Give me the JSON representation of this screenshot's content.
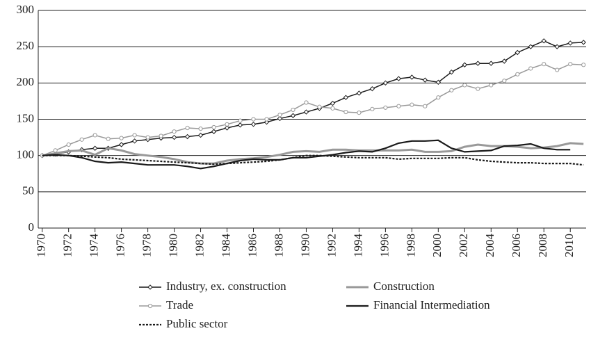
{
  "chart_data": {
    "type": "line",
    "x": [
      1970,
      1971,
      1972,
      1973,
      1974,
      1975,
      1976,
      1977,
      1978,
      1979,
      1980,
      1981,
      1982,
      1983,
      1984,
      1985,
      1986,
      1987,
      1988,
      1989,
      1990,
      1991,
      1992,
      1993,
      1994,
      1995,
      1996,
      1997,
      1998,
      1999,
      2000,
      2001,
      2002,
      2003,
      2004,
      2005,
      2006,
      2007,
      2008,
      2009,
      2010,
      2011
    ],
    "xlim": [
      1969.7,
      2011.2
    ],
    "xticks": [
      1970,
      1972,
      1974,
      1976,
      1978,
      1980,
      1982,
      1984,
      1986,
      1988,
      1990,
      1992,
      1994,
      1996,
      1998,
      2000,
      2002,
      2004,
      2006,
      2008,
      2010
    ],
    "ylim": [
      0,
      300
    ],
    "yticks": [
      0,
      50,
      100,
      150,
      200,
      250,
      300
    ],
    "grid": true,
    "series": [
      {
        "name": "Industry, ex. construction",
        "color": "#1a1a1a",
        "marker": "diamond",
        "values": [
          100,
          102,
          105,
          108,
          110,
          110,
          115,
          120,
          122,
          124,
          125,
          126,
          128,
          133,
          138,
          142,
          143,
          146,
          151,
          155,
          160,
          165,
          172,
          180,
          186,
          192,
          200,
          206,
          208,
          204,
          201,
          215,
          225,
          227,
          227,
          230,
          242,
          250,
          258,
          250,
          255,
          256
        ]
      },
      {
        "name": "Construction",
        "color": "#999999",
        "values": [
          100,
          103,
          106,
          107,
          101,
          110,
          107,
          102,
          100,
          98,
          95,
          91,
          89,
          89,
          93,
          95,
          96,
          98,
          101,
          105,
          106,
          105,
          108,
          108,
          107,
          107,
          107,
          107,
          108,
          105,
          105,
          106,
          112,
          115,
          113,
          113,
          112,
          110,
          111,
          113,
          117,
          116
        ]
      },
      {
        "name": "Trade",
        "color": "#999999",
        "marker": "circle",
        "values": [
          100,
          107,
          115,
          122,
          128,
          123,
          124,
          128,
          125,
          127,
          133,
          138,
          137,
          139,
          143,
          148,
          150,
          150,
          156,
          163,
          173,
          167,
          165,
          160,
          159,
          164,
          166,
          168,
          170,
          168,
          180,
          190,
          197,
          192,
          197,
          203,
          212,
          220,
          226,
          218,
          226,
          225
        ]
      },
      {
        "name": "Financial Intermediation",
        "color": "#1a1a1a",
        "values": [
          100,
          101,
          100,
          97,
          92,
          90,
          91,
          89,
          87,
          87,
          87,
          85,
          82,
          85,
          89,
          93,
          95,
          94,
          94,
          97,
          97,
          99,
          101,
          104,
          106,
          105,
          110,
          117,
          120,
          120,
          121,
          110,
          105,
          106,
          107,
          113,
          114,
          116,
          110,
          108,
          108,
          null
        ]
      },
      {
        "name": "Public sector",
        "color": "#1a1a1a",
        "dash": true,
        "values": [
          100,
          100,
          100,
          99,
          98,
          97,
          95,
          94,
          93,
          92,
          91,
          90,
          89,
          88,
          89,
          90,
          91,
          92,
          94,
          97,
          100,
          100,
          99,
          98,
          97,
          97,
          97,
          95,
          96,
          96,
          96,
          97,
          97,
          94,
          92,
          91,
          90,
          90,
          89,
          89,
          89,
          87
        ]
      }
    ]
  }
}
